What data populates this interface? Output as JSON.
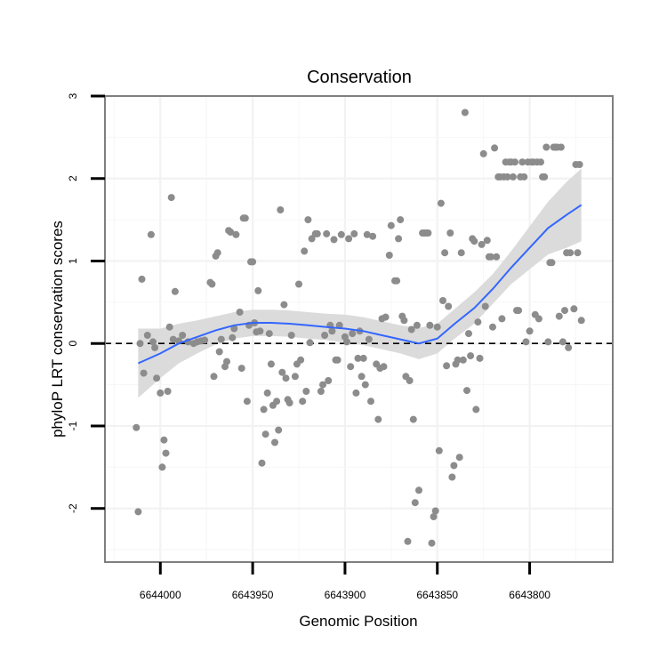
{
  "chart_data": {
    "type": "scatter",
    "title": "Conservation",
    "xlabel": "Genomic Position",
    "ylabel": "phyloP LRT conservation scores",
    "x_reversed": true,
    "xlim": [
      6644030,
      6643755
    ],
    "ylim": [
      -2.65,
      3.0
    ],
    "x_ticks": [
      6644000,
      6643950,
      6643900,
      6643850,
      6643800
    ],
    "x_tick_labels": [
      "6644000",
      "6643950",
      "6643900",
      "6643850",
      "6643800"
    ],
    "y_ticks": [
      -2,
      -1,
      0,
      1,
      2,
      3
    ],
    "y_tick_labels": [
      "-2",
      "-1",
      "0",
      "1",
      "2",
      "3"
    ],
    "reference_line_y": 0,
    "grid": true,
    "point_color": "#8c8c8c",
    "smooth_color": "#3366ff",
    "band_color": "#d9d9d9",
    "points": [
      [
        6644013,
        -1.02
      ],
      [
        6644012,
        -2.04
      ],
      [
        6644010,
        0.78
      ],
      [
        6644009,
        -0.36
      ],
      [
        6644011,
        0.0
      ],
      [
        6644007,
        0.1
      ],
      [
        6644005,
        1.32
      ],
      [
        6644004,
        0.02
      ],
      [
        6644003,
        -0.05
      ],
      [
        6644002,
        -0.42
      ],
      [
        6644000,
        -0.6
      ],
      [
        6643999,
        -1.5
      ],
      [
        6643998,
        -1.17
      ],
      [
        6643997,
        -1.33
      ],
      [
        6643996,
        -0.58
      ],
      [
        6643995,
        0.2
      ],
      [
        6643994,
        1.77
      ],
      [
        6643992,
        0.63
      ],
      [
        6643993,
        0.05
      ],
      [
        6643990,
        0.03
      ],
      [
        6643988,
        0.1
      ],
      [
        6643985,
        0.02
      ],
      [
        6643982,
        0.0
      ],
      [
        6643980,
        0.02
      ],
      [
        6643978,
        0.03
      ],
      [
        6643976,
        0.04
      ],
      [
        6643973,
        0.74
      ],
      [
        6643972,
        0.72
      ],
      [
        6643971,
        -0.4
      ],
      [
        6643970,
        1.06
      ],
      [
        6643969,
        1.1
      ],
      [
        6643968,
        -0.1
      ],
      [
        6643967,
        0.05
      ],
      [
        6643965,
        -0.28
      ],
      [
        6643964,
        -0.22
      ],
      [
        6643963,
        1.37
      ],
      [
        6643962,
        1.35
      ],
      [
        6643961,
        0.07
      ],
      [
        6643960,
        0.18
      ],
      [
        6643959,
        1.32
      ],
      [
        6643957,
        0.38
      ],
      [
        6643956,
        -0.3
      ],
      [
        6643955,
        1.52
      ],
      [
        6643954,
        1.52
      ],
      [
        6643953,
        -0.7
      ],
      [
        6643952,
        0.22
      ],
      [
        6643951,
        0.99
      ],
      [
        6643950,
        0.99
      ],
      [
        6643949,
        0.25
      ],
      [
        6643948,
        0.14
      ],
      [
        6643947,
        0.64
      ],
      [
        6643946,
        0.15
      ],
      [
        6643945,
        -1.45
      ],
      [
        6643944,
        -0.8
      ],
      [
        6643943,
        -1.1
      ],
      [
        6643942,
        -0.6
      ],
      [
        6643941,
        0.12
      ],
      [
        6643940,
        -0.25
      ],
      [
        6643939,
        -0.75
      ],
      [
        6643938,
        -1.2
      ],
      [
        6643937,
        -0.7
      ],
      [
        6643936,
        -1.05
      ],
      [
        6643935,
        1.62
      ],
      [
        6643934,
        -0.35
      ],
      [
        6643933,
        0.47
      ],
      [
        6643932,
        -0.42
      ],
      [
        6643931,
        -0.68
      ],
      [
        6643930,
        -0.72
      ],
      [
        6643929,
        0.1
      ],
      [
        6643927,
        -0.4
      ],
      [
        6643926,
        -0.25
      ],
      [
        6643925,
        0.72
      ],
      [
        6643924,
        -0.2
      ],
      [
        6643923,
        -0.7
      ],
      [
        6643922,
        1.12
      ],
      [
        6643921,
        -0.58
      ],
      [
        6643920,
        1.5
      ],
      [
        6643919,
        0.01
      ],
      [
        6643918,
        1.27
      ],
      [
        6643916,
        1.33
      ],
      [
        6643915,
        1.33
      ],
      [
        6643913,
        -0.58
      ],
      [
        6643912,
        -0.5
      ],
      [
        6643911,
        0.1
      ],
      [
        6643910,
        1.33
      ],
      [
        6643909,
        -0.45
      ],
      [
        6643908,
        0.22
      ],
      [
        6643907,
        0.15
      ],
      [
        6643906,
        1.26
      ],
      [
        6643905,
        -0.2
      ],
      [
        6643904,
        -0.2
      ],
      [
        6643903,
        0.22
      ],
      [
        6643902,
        1.32
      ],
      [
        6643900,
        0.08
      ],
      [
        6643899,
        0.02
      ],
      [
        6643898,
        1.27
      ],
      [
        6643897,
        -0.28
      ],
      [
        6643896,
        0.12
      ],
      [
        6643895,
        1.33
      ],
      [
        6643894,
        -0.6
      ],
      [
        6643893,
        -0.18
      ],
      [
        6643892,
        0.15
      ],
      [
        6643891,
        -0.4
      ],
      [
        6643890,
        -0.18
      ],
      [
        6643889,
        -0.5
      ],
      [
        6643888,
        1.32
      ],
      [
        6643887,
        0.05
      ],
      [
        6643886,
        -0.7
      ],
      [
        6643885,
        1.3
      ],
      [
        6643883,
        -0.25
      ],
      [
        6643882,
        -0.92
      ],
      [
        6643881,
        -0.3
      ],
      [
        6643880,
        0.3
      ],
      [
        6643879,
        -0.28
      ],
      [
        6643878,
        0.32
      ],
      [
        6643876,
        1.07
      ],
      [
        6643875,
        1.43
      ],
      [
        6643873,
        0.76
      ],
      [
        6643872,
        0.76
      ],
      [
        6643871,
        1.27
      ],
      [
        6643870,
        1.5
      ],
      [
        6643869,
        0.33
      ],
      [
        6643868,
        0.28
      ],
      [
        6643867,
        -0.4
      ],
      [
        6643866,
        -2.4
      ],
      [
        6643865,
        -0.45
      ],
      [
        6643864,
        0.17
      ],
      [
        6643863,
        -0.92
      ],
      [
        6643862,
        -1.93
      ],
      [
        6643861,
        0.22
      ],
      [
        6643860,
        -1.78
      ],
      [
        6643858,
        1.34
      ],
      [
        6643857,
        1.34
      ],
      [
        6643856,
        1.34
      ],
      [
        6643855,
        1.34
      ],
      [
        6643854,
        0.22
      ],
      [
        6643853,
        -2.42
      ],
      [
        6643852,
        -2.1
      ],
      [
        6643851,
        -2.03
      ],
      [
        6643850,
        0.2
      ],
      [
        6643849,
        -1.3
      ],
      [
        6643848,
        1.7
      ],
      [
        6643847,
        0.52
      ],
      [
        6643846,
        1.1
      ],
      [
        6643845,
        -0.27
      ],
      [
        6643844,
        0.45
      ],
      [
        6643843,
        1.34
      ],
      [
        6643842,
        -1.62
      ],
      [
        6643841,
        -1.48
      ],
      [
        6643840,
        -0.25
      ],
      [
        6643839,
        -0.2
      ],
      [
        6643838,
        -1.38
      ],
      [
        6643837,
        1.1
      ],
      [
        6643836,
        -0.2
      ],
      [
        6643835,
        2.8
      ],
      [
        6643834,
        -0.57
      ],
      [
        6643833,
        0.12
      ],
      [
        6643832,
        -0.15
      ],
      [
        6643831,
        1.27
      ],
      [
        6643830,
        1.24
      ],
      [
        6643829,
        -0.8
      ],
      [
        6643828,
        0.26
      ],
      [
        6643827,
        -0.18
      ],
      [
        6643826,
        1.2
      ],
      [
        6643825,
        2.3
      ],
      [
        6643824,
        0.45
      ],
      [
        6643823,
        1.25
      ],
      [
        6643822,
        1.05
      ],
      [
        6643821,
        1.05
      ],
      [
        6643820,
        0.2
      ],
      [
        6643819,
        2.37
      ],
      [
        6643818,
        1.05
      ],
      [
        6643817,
        2.02
      ],
      [
        6643816,
        2.02
      ],
      [
        6643815,
        0.3
      ],
      [
        6643814,
        2.02
      ],
      [
        6643813,
        2.2
      ],
      [
        6643812,
        2.02
      ],
      [
        6643811,
        2.2
      ],
      [
        6643810,
        2.2
      ],
      [
        6643809,
        2.02
      ],
      [
        6643808,
        2.2
      ],
      [
        6643807,
        0.4
      ],
      [
        6643806,
        0.4
      ],
      [
        6643805,
        2.02
      ],
      [
        6643804,
        2.2
      ],
      [
        6643803,
        2.02
      ],
      [
        6643802,
        0.02
      ],
      [
        6643801,
        2.2
      ],
      [
        6643800,
        0.15
      ],
      [
        6643799,
        2.2
      ],
      [
        6643798,
        2.2
      ],
      [
        6643797,
        0.35
      ],
      [
        6643796,
        2.2
      ],
      [
        6643795,
        0.3
      ],
      [
        6643794,
        2.2
      ],
      [
        6643793,
        2.02
      ],
      [
        6643792,
        2.02
      ],
      [
        6643791,
        2.38
      ],
      [
        6643790,
        0.02
      ],
      [
        6643789,
        0.98
      ],
      [
        6643788,
        0.98
      ],
      [
        6643787,
        2.38
      ],
      [
        6643786,
        2.38
      ],
      [
        6643785,
        2.38
      ],
      [
        6643784,
        0.33
      ],
      [
        6643783,
        2.38
      ],
      [
        6643782,
        0.02
      ],
      [
        6643781,
        0.4
      ],
      [
        6643780,
        1.1
      ],
      [
        6643779,
        -0.05
      ],
      [
        6643778,
        1.1
      ],
      [
        6643776,
        0.42
      ],
      [
        6643775,
        2.17
      ],
      [
        6643774,
        1.1
      ],
      [
        6643773,
        2.17
      ],
      [
        6643772,
        0.28
      ]
    ],
    "smooth_line": [
      [
        6644012,
        -0.24
      ],
      [
        6644000,
        -0.12
      ],
      [
        6643990,
        0.0
      ],
      [
        6643980,
        0.08
      ],
      [
        6643970,
        0.16
      ],
      [
        6643960,
        0.22
      ],
      [
        6643950,
        0.25
      ],
      [
        6643940,
        0.25
      ],
      [
        6643930,
        0.24
      ],
      [
        6643920,
        0.22
      ],
      [
        6643910,
        0.2
      ],
      [
        6643900,
        0.18
      ],
      [
        6643890,
        0.15
      ],
      [
        6643880,
        0.1
      ],
      [
        6643870,
        0.05
      ],
      [
        6643860,
        0.0
      ],
      [
        6643850,
        0.06
      ],
      [
        6643840,
        0.25
      ],
      [
        6643830,
        0.43
      ],
      [
        6643820,
        0.66
      ],
      [
        6643810,
        0.92
      ],
      [
        6643800,
        1.16
      ],
      [
        6643790,
        1.4
      ],
      [
        6643780,
        1.56
      ],
      [
        6643772,
        1.68
      ]
    ],
    "band_upper": [
      [
        6644012,
        0.18
      ],
      [
        6644000,
        0.18
      ],
      [
        6643990,
        0.24
      ],
      [
        6643980,
        0.28
      ],
      [
        6643970,
        0.33
      ],
      [
        6643960,
        0.38
      ],
      [
        6643950,
        0.41
      ],
      [
        6643940,
        0.41
      ],
      [
        6643930,
        0.4
      ],
      [
        6643920,
        0.38
      ],
      [
        6643910,
        0.36
      ],
      [
        6643900,
        0.35
      ],
      [
        6643890,
        0.32
      ],
      [
        6643880,
        0.27
      ],
      [
        6643870,
        0.22
      ],
      [
        6643860,
        0.19
      ],
      [
        6643850,
        0.24
      ],
      [
        6643840,
        0.43
      ],
      [
        6643830,
        0.62
      ],
      [
        6643820,
        0.84
      ],
      [
        6643810,
        1.12
      ],
      [
        6643800,
        1.42
      ],
      [
        6643790,
        1.72
      ],
      [
        6643780,
        1.96
      ],
      [
        6643772,
        2.12
      ]
    ],
    "band_lower": [
      [
        6644012,
        -0.66
      ],
      [
        6644000,
        -0.42
      ],
      [
        6643990,
        -0.24
      ],
      [
        6643980,
        -0.12
      ],
      [
        6643970,
        -0.01
      ],
      [
        6643960,
        0.06
      ],
      [
        6643950,
        0.09
      ],
      [
        6643940,
        0.09
      ],
      [
        6643930,
        0.08
      ],
      [
        6643920,
        0.06
      ],
      [
        6643910,
        0.04
      ],
      [
        6643900,
        0.01
      ],
      [
        6643890,
        -0.02
      ],
      [
        6643880,
        -0.07
      ],
      [
        6643870,
        -0.12
      ],
      [
        6643860,
        -0.19
      ],
      [
        6643850,
        -0.12
      ],
      [
        6643840,
        0.07
      ],
      [
        6643830,
        0.24
      ],
      [
        6643820,
        0.48
      ],
      [
        6643810,
        0.72
      ],
      [
        6643800,
        0.9
      ],
      [
        6643790,
        1.08
      ],
      [
        6643780,
        1.16
      ],
      [
        6643772,
        1.24
      ]
    ]
  }
}
